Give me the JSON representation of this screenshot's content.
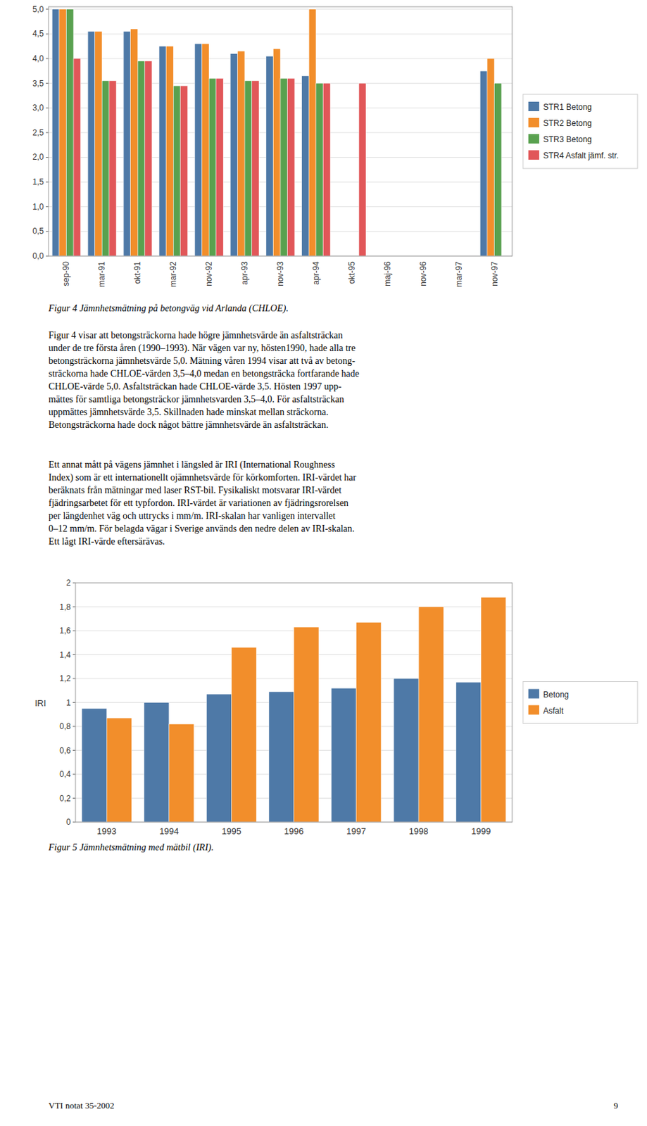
{
  "chart_data": [
    {
      "type": "bar",
      "title": "Figur 4     Jämnhetsmätning på betongväg vid Arlanda (CHLOE).",
      "categories": [
        "sep-90",
        "mar-91",
        "okt-91",
        "mar-92",
        "nov-92",
        "apr-93",
        "nov-93",
        "apr-94",
        "okt-95",
        "maj-96",
        "nov-96",
        "mar-97",
        "nov-97"
      ],
      "series": [
        {
          "name": "STR1 Betong",
          "color": "#4e79a7",
          "values": [
            5.0,
            4.55,
            4.55,
            4.25,
            4.3,
            4.1,
            4.05,
            3.65,
            null,
            null,
            null,
            null,
            3.75
          ]
        },
        {
          "name": "STR2 Betong",
          "color": "#f28e2b",
          "values": [
            5.0,
            4.55,
            4.6,
            4.25,
            4.3,
            4.15,
            4.2,
            5.0,
            null,
            null,
            null,
            null,
            4.0
          ]
        },
        {
          "name": "STR3 Betong",
          "color": "#59a14f",
          "values": [
            5.0,
            3.55,
            3.95,
            3.45,
            3.6,
            3.55,
            3.6,
            3.5,
            null,
            null,
            null,
            null,
            3.5
          ]
        },
        {
          "name": "STR4 Asfalt jämf. str.",
          "color": "#e15759",
          "values": [
            4.0,
            3.55,
            3.95,
            3.45,
            3.6,
            3.55,
            3.6,
            3.5,
            3.5,
            null,
            null,
            null,
            null
          ]
        }
      ],
      "ylim": [
        0,
        5.05
      ],
      "yticks": [
        {
          "value": 0.0,
          "label": "0,0"
        },
        {
          "value": 0.5,
          "label": "0,5"
        },
        {
          "value": 1.0,
          "label": "1,0"
        },
        {
          "value": 1.5,
          "label": "1,5"
        },
        {
          "value": 2.0,
          "label": "2,0"
        },
        {
          "value": 2.5,
          "label": "2,5"
        },
        {
          "value": 3.0,
          "label": "3,0"
        },
        {
          "value": 3.5,
          "label": "3,5"
        },
        {
          "value": 4.0,
          "label": "4,0"
        },
        {
          "value": 4.5,
          "label": "4,5"
        },
        {
          "value": 5.0,
          "label": "5,0"
        }
      ],
      "grid": true,
      "legend": "right"
    },
    {
      "type": "bar",
      "title": "Figur 5     Jämnhetsmätning med mätbil (IRI).",
      "ylabel": "IRI",
      "categories": [
        "1993",
        "1994",
        "1995",
        "1996",
        "1997",
        "1998",
        "1999"
      ],
      "series": [
        {
          "name": "Betong",
          "color": "#4e79a7",
          "values": [
            0.95,
            1.0,
            1.07,
            1.09,
            1.12,
            1.2,
            1.17
          ]
        },
        {
          "name": "Asfalt",
          "color": "#f28e2b",
          "values": [
            0.87,
            0.82,
            1.46,
            1.63,
            1.67,
            1.8,
            1.88
          ]
        }
      ],
      "ylim": [
        0,
        2.0
      ],
      "yticks": [
        0,
        {
          "value": 0.2,
          "label": "0,2"
        },
        {
          "value": 0.4,
          "label": "0,4"
        },
        {
          "value": 0.6,
          "label": "0,6"
        },
        {
          "value": 0.8,
          "label": "0,8"
        },
        1,
        {
          "value": 1.2,
          "label": "1,2"
        },
        {
          "value": 1.4,
          "label": "1,4"
        },
        {
          "value": 1.6,
          "label": "1,6"
        },
        {
          "value": 1.8,
          "label": "1,8"
        },
        2
      ],
      "grid": true,
      "legend": "right"
    }
  ],
  "paragraphs": [
    [
      "Figur 4 visar att betongsträckorna hade högre jämnhetsvärde än asfaltsträckan",
      "under de tre första åren (1990–1993). När vägen var ny, hösten1990, hade alla tre",
      "betongsträckorna jämnhetsvärde 5,0. Mätning våren 1994 visar att två av betong-",
      "sträckorna hade CHLOE-värden 3,5–4,0 medan en betongsträcka fortfarande hade",
      "CHLOE-värde 5,0. Asfaltsträckan hade CHLOE-värde 3,5. Hösten 1997 upp-",
      "mättes för samtliga betongsträckor jämnhetsvarden 3,5–4,0. För asfaltsträckan",
      "uppmättes jämnhetsvärde 3,5. Skillnaden hade minskat mellan sträckorna.",
      "Betongsträckorna hade dock något bättre jämnhetsvärde än asfaltsträckan."
    ],
    [
      "     Ett annat mått på vägens jämnhet i längsled är IRI (International Roughness",
      "Index) som är ett internationellt ojämnhetsvärde för körkomforten. IRI-värdet har",
      "beräknats från mätningar med laser RST-bil. Fysikaliskt motsvarar IRI-värdet",
      "fjädringsarbetet för ett typfordon. IRI-värdet är variationen av fjädringsrorelsen",
      "per längdenhet väg och uttrycks i mm/m. IRI-skalan har vanligen intervallet",
      "0–12 mm/m. För belagda vägar i Sverige används den nedre delen av IRI-skalan.",
      "Ett lågt IRI-värde eftersärävas."
    ]
  ],
  "footer": {
    "left": "VTI notat 35-2002",
    "right": "9"
  }
}
